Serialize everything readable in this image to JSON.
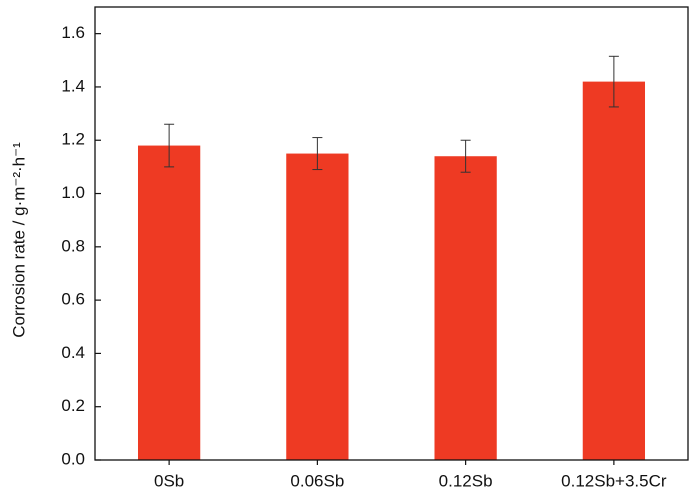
{
  "chart_data": {
    "type": "bar",
    "ylabel": "Corrosion rate / g·m⁻²·h⁻¹",
    "categories": [
      "0Sb",
      "0.06Sb",
      "0.12Sb",
      "0.12Sb+3.5Cr"
    ],
    "values": [
      1.18,
      1.15,
      1.14,
      1.42
    ],
    "errors": [
      0.08,
      0.06,
      0.06,
      0.095
    ],
    "color": "#ee3a23",
    "ylim": [
      0,
      1.7
    ],
    "yticks": [
      {
        "value": 0,
        "label": "0.0"
      },
      0.2,
      0.4,
      0.6,
      0.8,
      {
        "value": 1,
        "label": "1.0"
      },
      1.2,
      1.4,
      1.6
    ]
  }
}
